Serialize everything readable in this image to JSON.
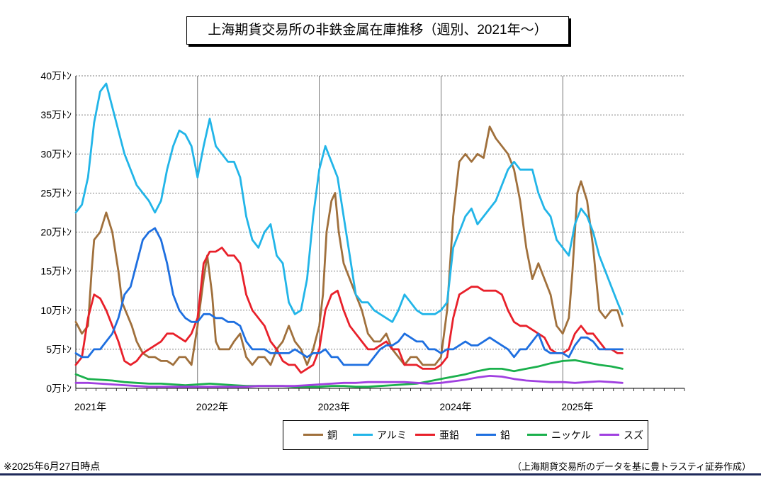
{
  "title": "上海期貨交易所の非鉄金属在庫推移（週別、2021年～）",
  "note_left": "※2025年6月27日時点",
  "note_right": "（上海期貨交易所のデータを基に豊トラスティ証券作成）",
  "chart_data": {
    "type": "line",
    "title": "上海期貨交易所の非鉄金属在庫推移（週別、2021年～）",
    "xlabel": "",
    "ylabel": "",
    "x_range": [
      2021.0,
      2026.0
    ],
    "ylim": [
      0,
      40
    ],
    "y_ticks": [
      0,
      5,
      10,
      15,
      20,
      25,
      30,
      35,
      40
    ],
    "y_tick_labels": [
      "0万ﾄﾝ",
      "5万ﾄﾝ",
      "10万ﾄﾝ",
      "15万ﾄﾝ",
      "20万ﾄﾝ",
      "25万ﾄﾝ",
      "30万ﾄﾝ",
      "35万ﾄﾝ",
      "40万ﾄﾝ"
    ],
    "x_ticks": [
      2021,
      2022,
      2023,
      2024,
      2025
    ],
    "x_tick_labels": [
      "2021年",
      "2022年",
      "2023年",
      "2024年",
      "2025年"
    ],
    "grid": true,
    "legend_position": "bottom",
    "series": [
      {
        "name": "銅",
        "color": "#a0703c",
        "x": [
          2021.0,
          2021.05,
          2021.1,
          2021.13,
          2021.15,
          2021.2,
          2021.25,
          2021.3,
          2021.35,
          2021.38,
          2021.42,
          2021.46,
          2021.5,
          2021.55,
          2021.6,
          2021.65,
          2021.7,
          2021.75,
          2021.8,
          2021.85,
          2021.9,
          2021.95,
          2022.0,
          2022.05,
          2022.08,
          2022.12,
          2022.15,
          2022.18,
          2022.22,
          2022.26,
          2022.3,
          2022.35,
          2022.4,
          2022.45,
          2022.5,
          2022.55,
          2022.6,
          2022.65,
          2022.7,
          2022.75,
          2022.8,
          2022.85,
          2022.9,
          2022.95,
          2023.0,
          2023.03,
          2023.06,
          2023.1,
          2023.13,
          2023.16,
          2023.2,
          2023.25,
          2023.3,
          2023.35,
          2023.4,
          2023.45,
          2023.5,
          2023.55,
          2023.6,
          2023.65,
          2023.7,
          2023.75,
          2023.8,
          2023.85,
          2023.9,
          2023.95,
          2024.0,
          2024.05,
          2024.1,
          2024.15,
          2024.2,
          2024.25,
          2024.3,
          2024.35,
          2024.4,
          2024.45,
          2024.5,
          2024.55,
          2024.6,
          2024.65,
          2024.7,
          2024.75,
          2024.8,
          2024.85,
          2024.9,
          2024.95,
          2025.0,
          2025.05,
          2025.08,
          2025.12,
          2025.15,
          2025.2,
          2025.25,
          2025.3,
          2025.35,
          2025.4,
          2025.45,
          2025.49
        ],
        "y": [
          8.5,
          7,
          8,
          15,
          19,
          20,
          22.5,
          20,
          15,
          11,
          9.5,
          8,
          6,
          4.5,
          4,
          4,
          3.5,
          3.5,
          3,
          4,
          4,
          3,
          8,
          14,
          17,
          12,
          6,
          5,
          5,
          5,
          6,
          7,
          4,
          3,
          4,
          4,
          3,
          5,
          6,
          8,
          6,
          5,
          3,
          5,
          8,
          12,
          20,
          24,
          25,
          20,
          16,
          14,
          12,
          10,
          7,
          6,
          6,
          7,
          5,
          4,
          3,
          4,
          4,
          3,
          3,
          3,
          4,
          10,
          22,
          29,
          30,
          29,
          30,
          29.5,
          33.5,
          32,
          31,
          30,
          28,
          24,
          18,
          14,
          16,
          14,
          12,
          8,
          7,
          9,
          15,
          25,
          26.5,
          24,
          18,
          10,
          9,
          10,
          10,
          8
        ]
      },
      {
        "name": "アルミ",
        "color": "#22b5e8",
        "x": [
          2021.0,
          2021.05,
          2021.1,
          2021.15,
          2021.2,
          2021.25,
          2021.3,
          2021.35,
          2021.4,
          2021.45,
          2021.5,
          2021.55,
          2021.6,
          2021.65,
          2021.7,
          2021.75,
          2021.8,
          2021.85,
          2021.9,
          2021.95,
          2022.0,
          2022.05,
          2022.1,
          2022.15,
          2022.2,
          2022.25,
          2022.3,
          2022.35,
          2022.4,
          2022.45,
          2022.5,
          2022.55,
          2022.6,
          2022.65,
          2022.7,
          2022.75,
          2022.8,
          2022.85,
          2022.9,
          2022.95,
          2023.0,
          2023.05,
          2023.1,
          2023.15,
          2023.2,
          2023.25,
          2023.3,
          2023.35,
          2023.4,
          2023.45,
          2023.5,
          2023.55,
          2023.6,
          2023.65,
          2023.7,
          2023.75,
          2023.8,
          2023.85,
          2023.9,
          2023.95,
          2024.0,
          2024.05,
          2024.1,
          2024.15,
          2024.2,
          2024.25,
          2024.3,
          2024.35,
          2024.4,
          2024.45,
          2024.5,
          2024.55,
          2024.6,
          2024.65,
          2024.7,
          2024.75,
          2024.8,
          2024.85,
          2024.9,
          2024.95,
          2025.0,
          2025.05,
          2025.1,
          2025.15,
          2025.2,
          2025.25,
          2025.3,
          2025.35,
          2025.4,
          2025.45,
          2025.49
        ],
        "y": [
          22.5,
          23.5,
          27,
          34,
          38,
          39,
          36,
          33,
          30,
          28,
          26,
          25,
          24,
          22.5,
          24,
          28,
          31,
          33,
          32.5,
          31,
          27,
          31,
          34.5,
          31,
          30,
          29,
          29,
          27,
          22,
          19,
          18,
          20,
          21,
          17,
          16,
          11,
          9.5,
          10,
          14,
          22,
          28,
          31,
          29,
          27,
          22,
          17,
          12,
          11,
          11,
          10,
          9.5,
          9,
          8.5,
          10,
          12,
          11,
          10,
          9.5,
          9.5,
          9.5,
          10,
          11,
          18,
          20,
          22,
          23,
          21,
          22,
          23,
          24,
          26,
          28,
          29,
          28,
          28,
          28,
          25,
          23,
          22,
          19,
          18,
          17,
          21,
          23,
          22,
          20,
          17,
          15,
          13,
          11,
          9.5
        ]
      },
      {
        "name": "亜鉛",
        "color": "#e8202a",
        "x": [
          2021.0,
          2021.05,
          2021.1,
          2021.15,
          2021.2,
          2021.25,
          2021.3,
          2021.35,
          2021.4,
          2021.45,
          2021.5,
          2021.55,
          2021.6,
          2021.65,
          2021.7,
          2021.75,
          2021.8,
          2021.85,
          2021.9,
          2021.95,
          2022.0,
          2022.05,
          2022.1,
          2022.15,
          2022.2,
          2022.25,
          2022.3,
          2022.35,
          2022.4,
          2022.45,
          2022.5,
          2022.55,
          2022.6,
          2022.65,
          2022.7,
          2022.75,
          2022.8,
          2022.85,
          2022.9,
          2022.95,
          2023.0,
          2023.05,
          2023.1,
          2023.15,
          2023.2,
          2023.25,
          2023.3,
          2023.35,
          2023.4,
          2023.45,
          2023.5,
          2023.55,
          2023.6,
          2023.65,
          2023.7,
          2023.75,
          2023.8,
          2023.85,
          2023.9,
          2023.95,
          2024.0,
          2024.05,
          2024.1,
          2024.15,
          2024.2,
          2024.25,
          2024.3,
          2024.35,
          2024.4,
          2024.45,
          2024.5,
          2024.55,
          2024.6,
          2024.65,
          2024.7,
          2024.75,
          2024.8,
          2024.85,
          2024.9,
          2024.95,
          2025.0,
          2025.05,
          2025.1,
          2025.15,
          2025.2,
          2025.25,
          2025.3,
          2025.35,
          2025.4,
          2025.45,
          2025.49
        ],
        "y": [
          3,
          4,
          9,
          12,
          11.5,
          10,
          8,
          6,
          3.5,
          3,
          3.5,
          4.5,
          5,
          5.5,
          6,
          7,
          7,
          6.5,
          6,
          7,
          9,
          16,
          17.5,
          17.5,
          18,
          17,
          17,
          16,
          12,
          10,
          9,
          8,
          6,
          5,
          3.5,
          3,
          3,
          2,
          2.5,
          3,
          5,
          10,
          12,
          12.5,
          10,
          8,
          7,
          6,
          5,
          5,
          5.5,
          6,
          5,
          5,
          3,
          3,
          3,
          2.5,
          2.5,
          2.5,
          3,
          4,
          9,
          12,
          12.5,
          13,
          13,
          12.5,
          12.5,
          12.5,
          12,
          10,
          8.5,
          8,
          8,
          7.5,
          7,
          6.5,
          5,
          4.5,
          4.5,
          5,
          7,
          8,
          7,
          7,
          6,
          5,
          5,
          4.5,
          4.5
        ]
      },
      {
        "name": "鉛",
        "color": "#1e6fe0",
        "x": [
          2021.0,
          2021.05,
          2021.1,
          2021.15,
          2021.2,
          2021.25,
          2021.3,
          2021.35,
          2021.4,
          2021.45,
          2021.5,
          2021.55,
          2021.6,
          2021.65,
          2021.7,
          2021.75,
          2021.8,
          2021.85,
          2021.9,
          2021.95,
          2022.0,
          2022.05,
          2022.1,
          2022.15,
          2022.2,
          2022.25,
          2022.3,
          2022.35,
          2022.4,
          2022.45,
          2022.5,
          2022.55,
          2022.6,
          2022.65,
          2022.7,
          2022.75,
          2022.8,
          2022.85,
          2022.9,
          2022.95,
          2023.0,
          2023.05,
          2023.1,
          2023.15,
          2023.2,
          2023.25,
          2023.3,
          2023.35,
          2023.4,
          2023.45,
          2023.5,
          2023.55,
          2023.6,
          2023.65,
          2023.7,
          2023.75,
          2023.8,
          2023.85,
          2023.9,
          2023.95,
          2024.0,
          2024.05,
          2024.1,
          2024.15,
          2024.2,
          2024.25,
          2024.3,
          2024.35,
          2024.4,
          2024.45,
          2024.5,
          2024.55,
          2024.6,
          2024.65,
          2024.7,
          2024.75,
          2024.8,
          2024.85,
          2024.9,
          2024.95,
          2025.0,
          2025.05,
          2025.1,
          2025.15,
          2025.2,
          2025.25,
          2025.3,
          2025.35,
          2025.4,
          2025.45,
          2025.49
        ],
        "y": [
          4.5,
          4,
          4,
          5,
          5,
          6,
          7,
          9,
          12,
          13,
          16,
          19,
          20,
          20.5,
          19,
          16,
          12,
          10,
          9,
          8.5,
          8.5,
          9.5,
          9.5,
          9,
          9,
          8.5,
          8.5,
          8,
          6,
          5,
          5,
          5,
          4.5,
          4.5,
          4.5,
          4.5,
          5,
          4.5,
          4,
          4.5,
          4.5,
          5,
          4,
          4,
          3,
          3,
          3,
          3,
          3,
          4,
          5,
          5.5,
          5.5,
          6,
          7,
          6.5,
          6,
          6,
          5,
          5,
          4.5,
          5,
          5,
          5.5,
          6,
          5.5,
          5.5,
          6,
          6.5,
          6,
          5.5,
          5,
          4,
          5,
          5,
          6,
          7,
          5,
          4.5,
          4.5,
          4.5,
          4,
          5.5,
          6.5,
          6.5,
          6,
          5,
          5,
          5,
          5,
          5
        ]
      },
      {
        "name": "ニッケル",
        "color": "#1ab04c",
        "x": [
          2021.0,
          2021.1,
          2021.2,
          2021.3,
          2021.4,
          2021.5,
          2021.6,
          2021.7,
          2021.8,
          2021.9,
          2022.0,
          2022.1,
          2022.2,
          2022.3,
          2022.4,
          2022.5,
          2022.6,
          2022.7,
          2022.8,
          2022.9,
          2023.0,
          2023.1,
          2023.2,
          2023.3,
          2023.4,
          2023.5,
          2023.6,
          2023.7,
          2023.8,
          2023.9,
          2024.0,
          2024.1,
          2024.2,
          2024.3,
          2024.4,
          2024.5,
          2024.6,
          2024.7,
          2024.8,
          2024.9,
          2025.0,
          2025.1,
          2025.2,
          2025.3,
          2025.4,
          2025.49
        ],
        "y": [
          1.8,
          1.2,
          1.1,
          1.0,
          0.8,
          0.7,
          0.6,
          0.6,
          0.5,
          0.4,
          0.5,
          0.6,
          0.5,
          0.4,
          0.3,
          0.3,
          0.3,
          0.3,
          0.2,
          0.2,
          0.2,
          0.3,
          0.3,
          0.2,
          0.2,
          0.3,
          0.4,
          0.5,
          0.6,
          0.9,
          1.2,
          1.5,
          1.8,
          2.2,
          2.5,
          2.5,
          2.2,
          2.5,
          2.8,
          3.2,
          3.5,
          3.6,
          3.3,
          3.0,
          2.8,
          2.5
        ]
      },
      {
        "name": "スズ",
        "color": "#a040e0",
        "x": [
          2021.0,
          2021.1,
          2021.2,
          2021.3,
          2021.4,
          2021.5,
          2021.6,
          2021.7,
          2021.8,
          2021.9,
          2022.0,
          2022.1,
          2022.2,
          2022.3,
          2022.4,
          2022.5,
          2022.6,
          2022.7,
          2022.8,
          2022.9,
          2023.0,
          2023.1,
          2023.2,
          2023.3,
          2023.4,
          2023.5,
          2023.6,
          2023.7,
          2023.8,
          2023.9,
          2024.0,
          2024.1,
          2024.2,
          2024.3,
          2024.4,
          2024.5,
          2024.6,
          2024.7,
          2024.8,
          2024.9,
          2025.0,
          2025.1,
          2025.2,
          2025.3,
          2025.4,
          2025.49
        ],
        "y": [
          0.7,
          0.7,
          0.6,
          0.5,
          0.4,
          0.3,
          0.2,
          0.2,
          0.2,
          0.2,
          0.2,
          0.2,
          0.2,
          0.2,
          0.2,
          0.3,
          0.3,
          0.3,
          0.3,
          0.4,
          0.5,
          0.6,
          0.7,
          0.7,
          0.8,
          0.8,
          0.8,
          0.8,
          0.7,
          0.6,
          0.7,
          0.9,
          1.1,
          1.4,
          1.6,
          1.5,
          1.2,
          1.0,
          0.9,
          0.8,
          0.8,
          0.7,
          0.8,
          0.9,
          0.8,
          0.7
        ]
      }
    ]
  }
}
